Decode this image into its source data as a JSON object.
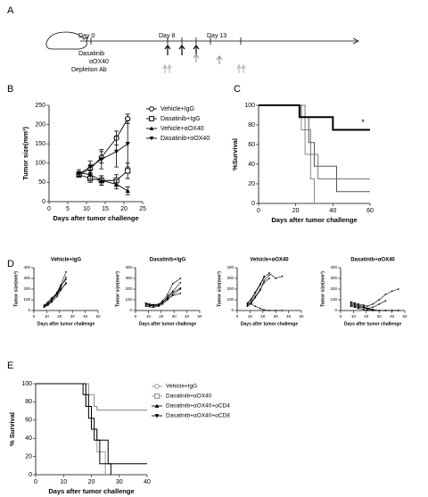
{
  "panels": [
    "A",
    "B",
    "C",
    "D",
    "E"
  ],
  "timeline": {
    "day0": "Day 0",
    "day8": "Day 8",
    "day13": "Day 13",
    "drug": "Dasatinib",
    "antibody": "αOX40",
    "depletion": "Depletion Ab"
  },
  "chart_data": [
    {
      "type": "line",
      "ylabel": "Tumor size(mm³)",
      "xlabel": "Days after tumor challenge",
      "xlim": [
        0,
        25
      ],
      "xticks": [
        0,
        5,
        10,
        15,
        20,
        25
      ],
      "ylim": [
        0,
        250
      ],
      "yticks": [
        0,
        50,
        100,
        150,
        200,
        250
      ],
      "x": [
        8,
        11,
        14,
        18,
        21
      ],
      "legend": "right",
      "series": [
        {
          "name": "Vehicle+IgG",
          "color": "#000000",
          "marker": "circle-open",
          "values": [
            70,
            85,
            115,
            165,
            215
          ],
          "errors": [
            6,
            12,
            15,
            18,
            12
          ]
        },
        {
          "name": "Dasatinib+IgG",
          "color": "#000000",
          "marker": "square-open",
          "values": [
            70,
            60,
            55,
            55,
            80
          ],
          "errors": [
            6,
            10,
            12,
            15,
            20
          ]
        },
        {
          "name": "Vehicle+αOX40",
          "color": "#000000",
          "marker": "triangle-up",
          "values": [
            75,
            70,
            55,
            45,
            28
          ],
          "errors": [
            8,
            12,
            12,
            12,
            10
          ]
        },
        {
          "name": "Dasatinib+αOX40",
          "color": "#000000",
          "marker": "triangle-down",
          "values": [
            72,
            90,
            110,
            130,
            150
          ],
          "errors": [
            6,
            15,
            25,
            40,
            60
          ]
        }
      ]
    },
    {
      "type": "step",
      "ylabel": "%Survival",
      "xlabel": "Days after tumor challenge",
      "annotation": "*",
      "xlim": [
        0,
        60
      ],
      "xticks": [
        0,
        20,
        40,
        60
      ],
      "ylim": [
        0,
        100
      ],
      "yticks": [
        0,
        20,
        40,
        60,
        80,
        100
      ],
      "series": [
        {
          "color": "#888888",
          "width": 1,
          "x": [
            0,
            23,
            25,
            28,
            30
          ],
          "values": [
            100,
            75,
            50,
            25,
            0
          ]
        },
        {
          "color": "#555555",
          "width": 1,
          "x": [
            0,
            23,
            27,
            30,
            42,
            60
          ],
          "values": [
            100,
            88,
            62,
            38,
            12,
            12
          ]
        },
        {
          "color": "#777777",
          "width": 1,
          "x": [
            0,
            25,
            28,
            32,
            60
          ],
          "values": [
            100,
            75,
            50,
            25,
            25
          ]
        },
        {
          "color": "#000000",
          "width": 2,
          "x": [
            0,
            22,
            28,
            40,
            60
          ],
          "values": [
            100,
            88,
            88,
            75,
            75
          ]
        }
      ]
    },
    {
      "type": "line",
      "title": "Vehicle+IgG",
      "ylabel": "Tumor size(mm³)",
      "xlabel": "Days after tumor challenge",
      "xlim": [
        0,
        50
      ],
      "xticks": [
        0,
        10,
        20,
        30,
        40,
        50
      ],
      "ylim": [
        0,
        400
      ],
      "yticks": [
        0,
        100,
        200,
        300,
        400
      ],
      "x": [
        8,
        11,
        14,
        18,
        21,
        25
      ],
      "series": [
        {
          "color": "#000000",
          "marker": "dot",
          "values": [
            40,
            60,
            90,
            150,
            220,
            310
          ]
        },
        {
          "color": "#000000",
          "marker": "dot",
          "values": [
            30,
            50,
            80,
            130,
            190,
            260
          ]
        },
        {
          "color": "#000000",
          "marker": "dot",
          "values": [
            45,
            70,
            110,
            170,
            240,
            360
          ]
        },
        {
          "color": "#000000",
          "marker": "dot",
          "values": [
            35,
            55,
            100,
            160,
            230,
            290
          ]
        },
        {
          "color": "#000000",
          "marker": "dot",
          "values": [
            50,
            80,
            120,
            150,
            200,
            250
          ]
        }
      ]
    },
    {
      "type": "line",
      "title": "Dasatinib+IgG",
      "ylabel": "Tumor size(mm³)",
      "xlabel": "Days after tumor challenge",
      "xlim": [
        0,
        50
      ],
      "xticks": [
        0,
        10,
        20,
        30,
        40,
        50
      ],
      "ylim": [
        0,
        400
      ],
      "yticks": [
        0,
        100,
        200,
        300,
        400
      ],
      "x": [
        8,
        11,
        14,
        18,
        21,
        25,
        29,
        35
      ],
      "series": [
        {
          "color": "#000000",
          "marker": "dot",
          "values": [
            70,
            60,
            55,
            60,
            90,
            150,
            250,
            300
          ]
        },
        {
          "color": "#000000",
          "marker": "dot",
          "values": [
            50,
            45,
            40,
            50,
            70,
            130,
            180,
            260
          ]
        },
        {
          "color": "#000000",
          "marker": "dot",
          "values": [
            60,
            50,
            45,
            40,
            60,
            100,
            150,
            200
          ]
        },
        {
          "color": "#000000",
          "marker": "dot",
          "values": [
            40,
            35,
            30,
            45,
            80,
            120,
            170,
            210
          ]
        },
        {
          "color": "#000000",
          "marker": "dot",
          "values": [
            65,
            55,
            50,
            55,
            75,
            110,
            140,
            160
          ]
        }
      ]
    },
    {
      "type": "line",
      "title": "Vehicle+αOX40",
      "ylabel": "Tumor size(mm³)",
      "xlabel": "Days after tumor challenge",
      "xlim": [
        0,
        50
      ],
      "xticks": [
        0,
        10,
        20,
        30,
        40,
        50
      ],
      "ylim": [
        0,
        400
      ],
      "yticks": [
        0,
        100,
        200,
        300,
        400
      ],
      "x": [
        8,
        11,
        14,
        18,
        21,
        25,
        30,
        35
      ],
      "series": [
        {
          "color": "#000000",
          "marker": "dot",
          "values": [
            60,
            100,
            160,
            240,
            310,
            350,
            300,
            320
          ]
        },
        {
          "color": "#000000",
          "marker": "dot",
          "values": [
            50,
            80,
            130,
            200,
            260,
            300,
            null,
            null
          ]
        },
        {
          "color": "#000000",
          "marker": "dot",
          "values": [
            40,
            60,
            40,
            20,
            5,
            0,
            0,
            0
          ]
        },
        {
          "color": "#000000",
          "marker": "dot",
          "values": [
            70,
            110,
            170,
            250,
            320,
            null,
            null,
            null
          ]
        },
        {
          "color": "#000000",
          "marker": "dot",
          "values": [
            50,
            70,
            120,
            190,
            280,
            330,
            null,
            null
          ]
        }
      ]
    },
    {
      "type": "line",
      "title": "Dasatinib+αOX40",
      "ylabel": "Tumor size(mm³)",
      "xlabel": "Days after tumor challenge",
      "xlim": [
        0,
        50
      ],
      "xticks": [
        0,
        10,
        20,
        30,
        40,
        50
      ],
      "ylim": [
        0,
        400
      ],
      "yticks": [
        0,
        100,
        200,
        300,
        400
      ],
      "x": [
        8,
        11,
        14,
        18,
        21,
        25,
        30,
        35,
        40,
        45
      ],
      "series": [
        {
          "color": "#000000",
          "marker": "dot",
          "values": [
            80,
            70,
            60,
            50,
            40,
            60,
            100,
            150,
            180,
            200
          ]
        },
        {
          "color": "#000000",
          "marker": "dot",
          "values": [
            60,
            50,
            40,
            30,
            20,
            10,
            0,
            0,
            0,
            0
          ]
        },
        {
          "color": "#000000",
          "marker": "dot",
          "values": [
            50,
            40,
            30,
            25,
            15,
            5,
            0,
            null,
            null,
            null
          ]
        },
        {
          "color": "#000000",
          "marker": "dot",
          "values": [
            70,
            60,
            50,
            40,
            20,
            30,
            60,
            90,
            null,
            null
          ]
        },
        {
          "color": "#000000",
          "marker": "dot",
          "values": [
            40,
            30,
            20,
            10,
            5,
            0,
            0,
            0,
            0,
            0
          ]
        }
      ]
    },
    {
      "type": "step",
      "ylabel": "% Survival",
      "xlabel": "Days after tumor challenge",
      "legend": "right",
      "xlim": [
        0,
        40
      ],
      "xticks": [
        0,
        10,
        20,
        30,
        40
      ],
      "ylim": [
        0,
        100
      ],
      "yticks": [
        0,
        20,
        40,
        60,
        80,
        100
      ],
      "series": [
        {
          "name": "Vehicle+IgG",
          "color": "#999999",
          "width": 1,
          "marker": "circle-open",
          "x": [
            0,
            18,
            20,
            22,
            25
          ],
          "values": [
            100,
            75,
            50,
            25,
            0
          ]
        },
        {
          "name": "Dasatinib+αOX40",
          "color": "#888888",
          "width": 1,
          "marker": "square-open",
          "x": [
            0,
            19,
            21,
            22,
            40
          ],
          "values": [
            100,
            88,
            75,
            71,
            71
          ]
        },
        {
          "name": "Dasatinib+αOX40+αCD4",
          "color": "#000000",
          "width": 1,
          "marker": "triangle-up",
          "x": [
            0,
            18,
            20,
            22,
            26,
            40
          ],
          "values": [
            100,
            75,
            50,
            38,
            12,
            12
          ]
        },
        {
          "name": "Dasatinib+αOX40+αCD8",
          "color": "#000000",
          "width": 1,
          "marker": "triangle-down",
          "x": [
            0,
            17,
            19,
            21,
            23,
            27
          ],
          "values": [
            100,
            88,
            62,
            38,
            12,
            0
          ]
        }
      ]
    }
  ]
}
